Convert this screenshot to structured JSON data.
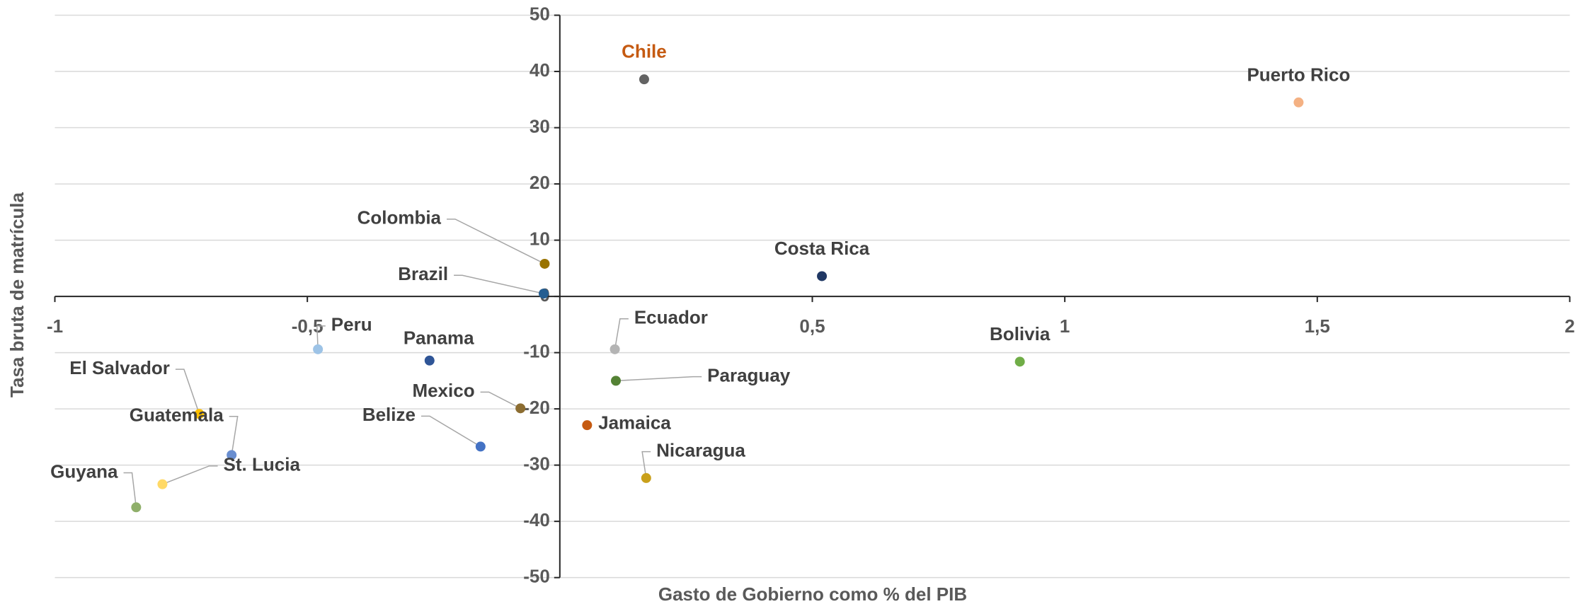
{
  "chart_data": {
    "type": "scatter",
    "xlabel": "Gasto de Gobierno como % del PIB",
    "ylabel": "Tasa bruta de matrícula",
    "xlim": [
      -1,
      2
    ],
    "xticks": [
      -1,
      {
        "value": -0.5,
        "label": "-0,5"
      },
      {
        "value": 0.5,
        "label": "0,5"
      },
      1,
      {
        "value": 1.5,
        "label": "1,5"
      },
      2
    ],
    "ylim": [
      -50,
      50
    ],
    "yticks": [
      -50,
      -40,
      -30,
      -20,
      -10,
      0,
      10,
      20,
      30,
      40,
      50
    ],
    "grid": true,
    "series": [
      {
        "name": "Chile",
        "color": "#636363",
        "label_color": "#c55a11",
        "x": [
          0.167
        ],
        "values": [
          38.6
        ]
      },
      {
        "name": "Puerto Rico",
        "color": "#f4b183",
        "x": [
          1.463
        ],
        "values": [
          34.5
        ]
      },
      {
        "name": "Costa Rica",
        "color": "#203864",
        "x": [
          0.519
        ],
        "values": [
          3.6
        ]
      },
      {
        "name": "Colombia",
        "color": "#997300",
        "x": [
          -0.03
        ],
        "values": [
          5.8
        ]
      },
      {
        "name": "Brazil",
        "color": "#255e91",
        "x": [
          -0.032
        ],
        "values": [
          0.5
        ]
      },
      {
        "name": "Ecuador",
        "color": "#b4b4b4",
        "x": [
          0.109
        ],
        "values": [
          -9.4
        ]
      },
      {
        "name": "Paraguay",
        "color": "#548235",
        "x": [
          0.111
        ],
        "values": [
          -15
        ]
      },
      {
        "name": "Jamaica",
        "color": "#c55a11",
        "x": [
          0.054
        ],
        "values": [
          -22.9
        ]
      },
      {
        "name": "Nicaragua",
        "color": "#c9a01b",
        "x": [
          0.171
        ],
        "values": [
          -32.3
        ]
      },
      {
        "name": "Bolivia",
        "color": "#70ad47",
        "x": [
          0.911
        ],
        "values": [
          -11.6
        ]
      },
      {
        "name": "Peru",
        "color": "#9dc3e6",
        "x": [
          -0.479
        ],
        "values": [
          -9.4
        ]
      },
      {
        "name": "Panama",
        "color": "#2f5597",
        "x": [
          -0.258
        ],
        "values": [
          -11.4
        ]
      },
      {
        "name": "Mexico",
        "color": "#8c6d31",
        "x": [
          -0.078
        ],
        "values": [
          -19.9
        ]
      },
      {
        "name": "Belize",
        "color": "#4472c4",
        "x": [
          -0.157
        ],
        "values": [
          -26.7
        ]
      },
      {
        "name": "El Salvador",
        "color": "#ffc000",
        "x": [
          -0.714
        ],
        "values": [
          -20.9
        ]
      },
      {
        "name": "Guatemala",
        "color": "#698ed0",
        "x": [
          -0.65
        ],
        "values": [
          -28.2
        ]
      },
      {
        "name": "St. Lucia",
        "color": "#ffd966",
        "x": [
          -0.787
        ],
        "values": [
          -33.4
        ]
      },
      {
        "name": "Guyana",
        "color": "#8faf6a",
        "x": [
          -0.839
        ],
        "values": [
          -37.5
        ]
      }
    ]
  }
}
